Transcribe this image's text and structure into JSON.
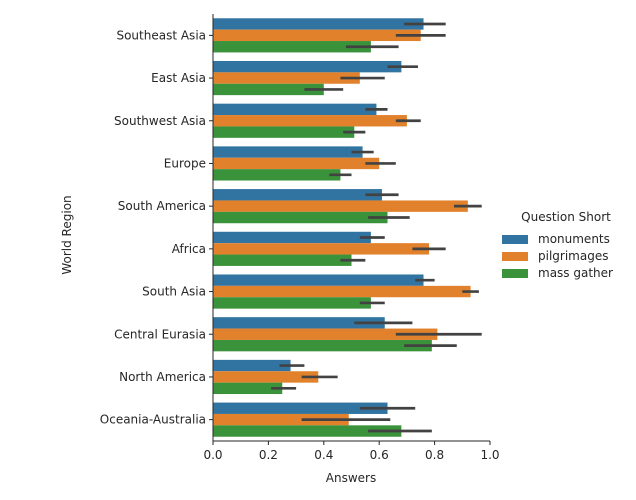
{
  "chart_data": {
    "type": "bar",
    "orientation": "horizontal",
    "xlabel": "Answers",
    "ylabel": "World Region",
    "xlim": [
      0,
      1.0
    ],
    "xticks": [
      "0.0",
      "0.2",
      "0.4",
      "0.6",
      "0.8",
      "1.0"
    ],
    "grid": false,
    "legend_title": "Question Short",
    "legend_position": "right",
    "categories": [
      "Southeast Asia",
      "East Asia",
      "Southwest Asia",
      "Europe",
      "South America",
      "Africa",
      "South Asia",
      "Central Eurasia",
      "North America",
      "Oceania-Australia"
    ],
    "series": [
      {
        "name": "monuments",
        "color": "#3274a1",
        "values": [
          0.76,
          0.68,
          0.59,
          0.54,
          0.61,
          0.57,
          0.76,
          0.62,
          0.28,
          0.63
        ],
        "ci": [
          [
            0.69,
            0.84
          ],
          [
            0.63,
            0.74
          ],
          [
            0.55,
            0.63
          ],
          [
            0.5,
            0.58
          ],
          [
            0.55,
            0.67
          ],
          [
            0.53,
            0.62
          ],
          [
            0.73,
            0.8
          ],
          [
            0.51,
            0.72
          ],
          [
            0.24,
            0.33
          ],
          [
            0.53,
            0.73
          ]
        ]
      },
      {
        "name": "pilgrimages",
        "color": "#e1812c",
        "values": [
          0.75,
          0.53,
          0.7,
          0.6,
          0.92,
          0.78,
          0.93,
          0.81,
          0.38,
          0.49
        ],
        "ci": [
          [
            0.66,
            0.84
          ],
          [
            0.46,
            0.62
          ],
          [
            0.66,
            0.75
          ],
          [
            0.55,
            0.66
          ],
          [
            0.87,
            0.97
          ],
          [
            0.72,
            0.84
          ],
          [
            0.9,
            0.96
          ],
          [
            0.66,
            0.97
          ],
          [
            0.32,
            0.45
          ],
          [
            0.32,
            0.64
          ]
        ]
      },
      {
        "name": "mass gather",
        "color": "#3a923a",
        "values": [
          0.57,
          0.4,
          0.51,
          0.46,
          0.63,
          0.5,
          0.57,
          0.79,
          0.25,
          0.68
        ],
        "ci": [
          [
            0.48,
            0.67
          ],
          [
            0.33,
            0.47
          ],
          [
            0.47,
            0.55
          ],
          [
            0.42,
            0.5
          ],
          [
            0.56,
            0.71
          ],
          [
            0.46,
            0.55
          ],
          [
            0.53,
            0.62
          ],
          [
            0.69,
            0.88
          ],
          [
            0.21,
            0.3
          ],
          [
            0.56,
            0.79
          ]
        ]
      }
    ]
  }
}
